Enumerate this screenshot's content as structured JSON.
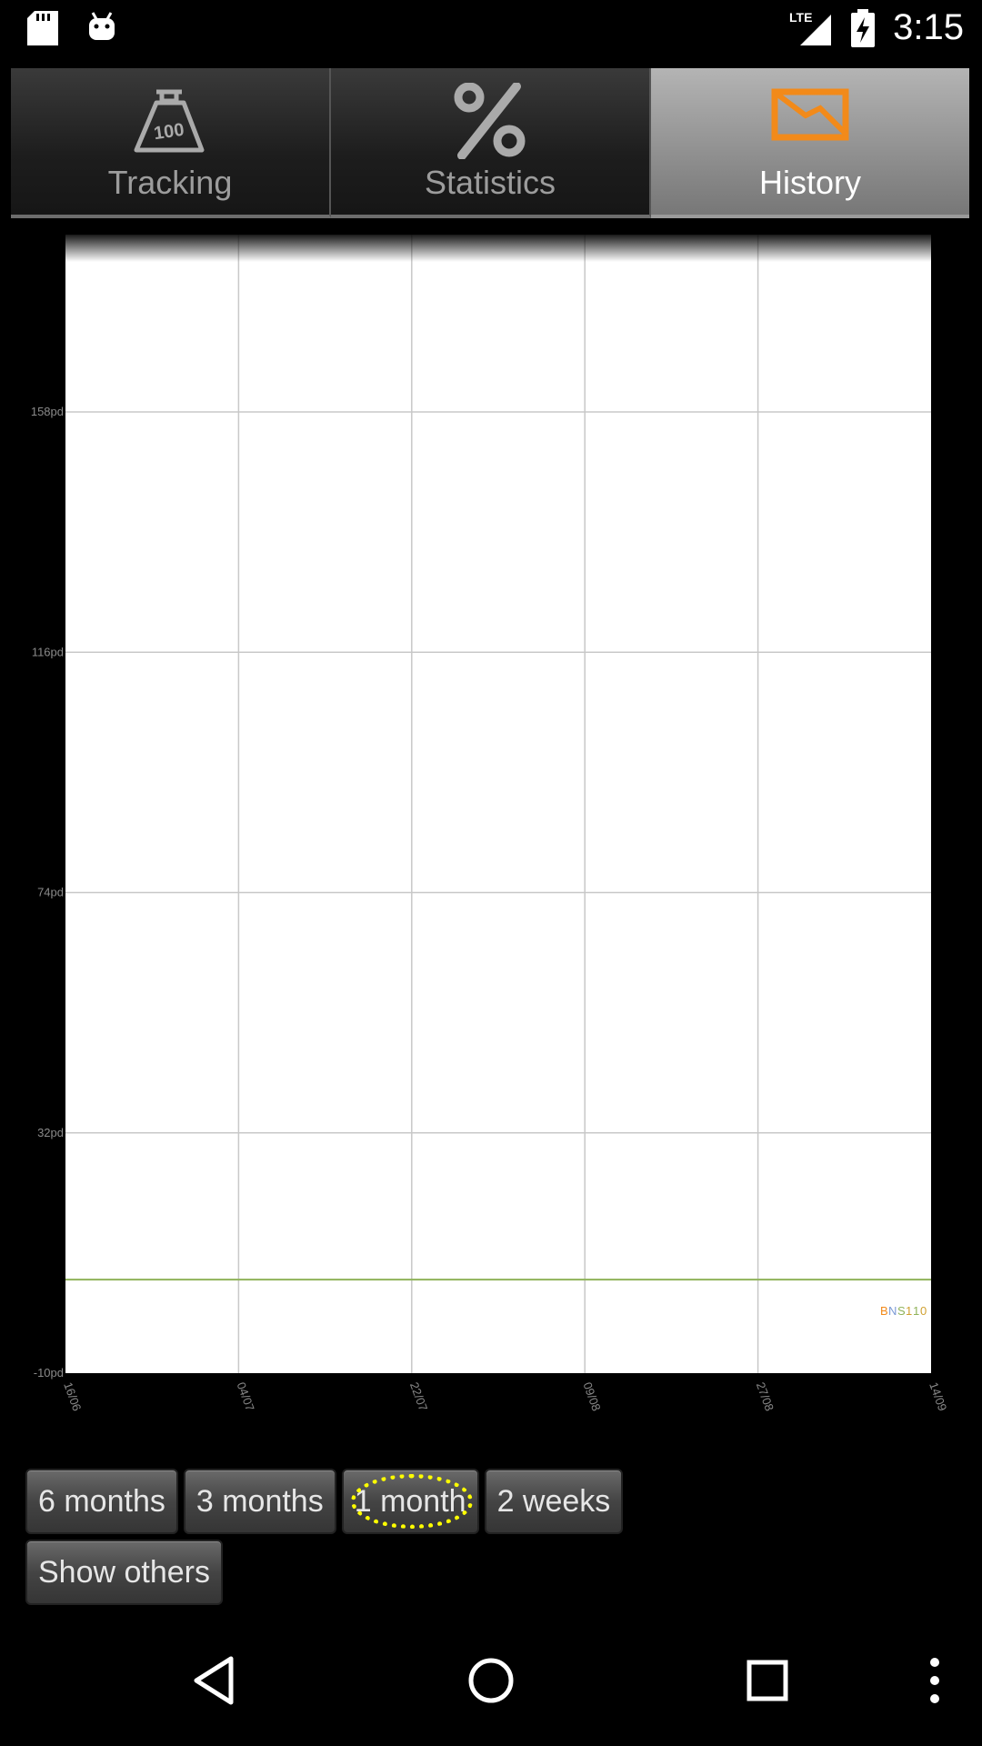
{
  "status_bar": {
    "time": "3:15",
    "network": "LTE",
    "icons": [
      "sd-card-icon",
      "android-icon",
      "signal-icon",
      "battery-charging-icon"
    ]
  },
  "tabs": [
    {
      "label": "Tracking",
      "icon": "weight-100-icon",
      "active": false
    },
    {
      "label": "Statistics",
      "icon": "percent-icon",
      "active": false
    },
    {
      "label": "History",
      "icon": "envelope-chart-icon",
      "active": true
    }
  ],
  "chart_data": {
    "type": "line",
    "yticks": [
      "158pd",
      "116pd",
      "74pd",
      "32pd",
      "-10pd"
    ],
    "xticks": [
      "16/06",
      "04/07",
      "22/07",
      "09/08",
      "27/08",
      "14/09"
    ],
    "ylim": [
      -10,
      200
    ],
    "series": [
      {
        "color": "#8fb35a",
        "values": [
          0,
          0,
          0,
          0,
          0,
          0
        ]
      }
    ],
    "grid": true,
    "colors": {
      "line": "#8fb35a",
      "grid": "#c8c8c8",
      "background": "#ffffff"
    }
  },
  "range_buttons": [
    {
      "label": "6 months",
      "selected": false
    },
    {
      "label": "3 months",
      "selected": false
    },
    {
      "label": "1 month",
      "selected": true
    },
    {
      "label": "2 weeks",
      "selected": false
    }
  ],
  "extra_button": {
    "label": "Show others"
  },
  "nav_bar": [
    "back-icon",
    "home-icon",
    "recents-icon",
    "overflow-menu-icon"
  ]
}
